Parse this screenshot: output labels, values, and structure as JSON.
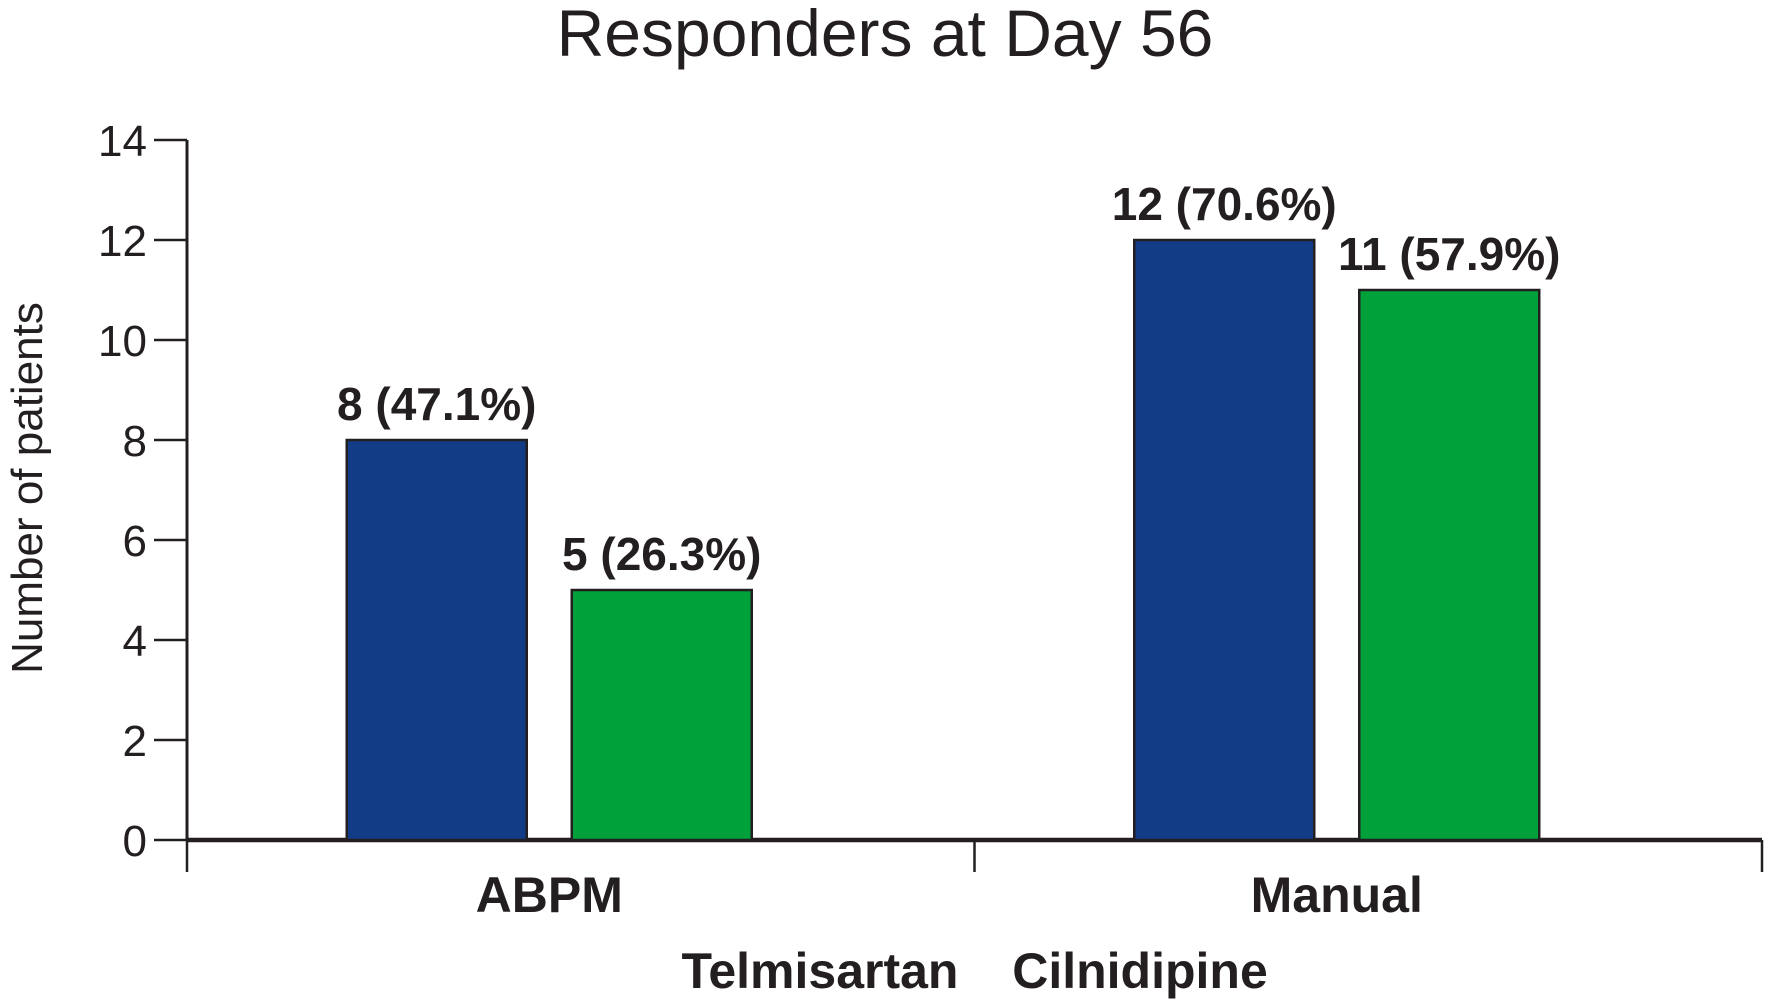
{
  "chart_data": {
    "type": "bar",
    "title": "Responders at Day 56",
    "xlabel": "",
    "ylabel": "Number of patients",
    "ylim": [
      0,
      14
    ],
    "yticks": [
      0,
      2,
      4,
      6,
      8,
      10,
      12,
      14
    ],
    "grid": false,
    "legend_position": "bottom",
    "categories": [
      "ABPM",
      "Manual"
    ],
    "series": [
      {
        "name": "Telmisartan",
        "color": "#133c87",
        "values": [
          8,
          12
        ],
        "labels": [
          "8 (47.1%)",
          "12 (70.6%)"
        ]
      },
      {
        "name": "Cilnidipine",
        "color": "#00a03a",
        "values": [
          5,
          11
        ],
        "labels": [
          "5 (26.3%)",
          "11 (57.9%)"
        ]
      }
    ]
  }
}
